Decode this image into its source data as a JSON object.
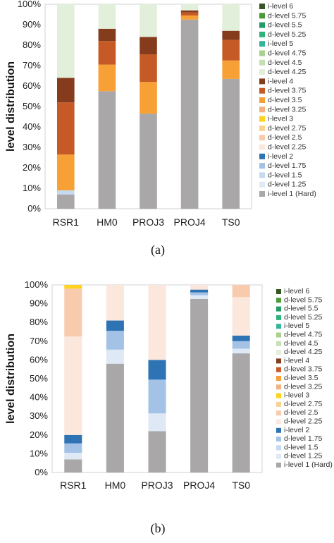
{
  "chart_data": [
    {
      "type": "bar",
      "stacked": true,
      "caption": "(a)",
      "ylabel": "level distribution",
      "ylim": [
        0,
        100
      ],
      "yticks": [
        "0%",
        "10%",
        "20%",
        "30%",
        "40%",
        "50%",
        "60%",
        "70%",
        "80%",
        "90%",
        "100%"
      ],
      "grid": false,
      "legend_position": "right",
      "categories": [
        "RSR1",
        "HM0",
        "PROJ3",
        "PROJ4",
        "TS0"
      ],
      "series": [
        {
          "name": "i-level 1 (Hard)",
          "color": "#a9a7a7",
          "values": [
            7,
            57.5,
            46.5,
            92.5,
            63.5
          ]
        },
        {
          "name": "d-level 1.25",
          "color": "#dfe9f6",
          "values": [
            0,
            0,
            0,
            0,
            0
          ]
        },
        {
          "name": "d-level 1.5",
          "color": "#c6dbf0",
          "values": [
            2,
            0,
            0,
            0,
            0
          ]
        },
        {
          "name": "d-level 1.75",
          "color": "#a3c2e6",
          "values": [
            0,
            0,
            0,
            0,
            0
          ]
        },
        {
          "name": "i-level 2",
          "color": "#2e74b5",
          "values": [
            0,
            0,
            0,
            0,
            0
          ]
        },
        {
          "name": "d-level 2.25",
          "color": "#fbe7dc",
          "values": [
            0,
            0,
            0,
            0,
            0
          ]
        },
        {
          "name": "d-level 2.5",
          "color": "#f8cbad",
          "values": [
            0,
            0,
            0,
            0,
            0
          ]
        },
        {
          "name": "d-level 2.75",
          "color": "#f9d38c",
          "values": [
            0,
            0,
            0,
            0,
            0
          ]
        },
        {
          "name": "i-level 3",
          "color": "#ffd21f",
          "values": [
            0,
            0,
            0,
            0,
            0
          ]
        },
        {
          "name": "d-level 3.25",
          "color": "#f4b183",
          "values": [
            0,
            0,
            0,
            0,
            0
          ]
        },
        {
          "name": "d-level 3.5",
          "color": "#f7a035",
          "values": [
            17.5,
            13,
            15.5,
            2,
            9
          ]
        },
        {
          "name": "d-level 3.75",
          "color": "#c55a27",
          "values": [
            25.5,
            11.5,
            13.5,
            1.5,
            10
          ]
        },
        {
          "name": "i-level 4",
          "color": "#843c1c",
          "values": [
            12,
            6,
            8.5,
            1,
            4.5
          ]
        },
        {
          "name": "d-level 4.25",
          "color": "#e2efda",
          "values": [
            36,
            12,
            16,
            3,
            13
          ]
        },
        {
          "name": "d-level 4.5",
          "color": "#c5e0b4",
          "values": [
            0,
            0,
            0,
            0,
            0
          ]
        },
        {
          "name": "d-level 4.75",
          "color": "#a9d08e",
          "values": [
            0,
            0,
            0,
            0,
            0
          ]
        },
        {
          "name": "i-level 5",
          "color": "#33b59a",
          "values": [
            0,
            0,
            0,
            0,
            0
          ]
        },
        {
          "name": "d-level 5.25",
          "color": "#2fb37a",
          "values": [
            0,
            0,
            0,
            0,
            0
          ]
        },
        {
          "name": "d-level 5.5",
          "color": "#1f9e63",
          "values": [
            0,
            0,
            0,
            0,
            0
          ]
        },
        {
          "name": "d-level 5.75",
          "color": "#4a9b36",
          "values": [
            0,
            0,
            0,
            0,
            0
          ]
        },
        {
          "name": "i-level 6",
          "color": "#375623",
          "values": [
            0,
            0,
            0,
            0,
            0
          ]
        }
      ]
    },
    {
      "type": "bar",
      "stacked": true,
      "caption": "(b)",
      "ylabel": "level distribution",
      "ylim": [
        0,
        100
      ],
      "yticks": [
        "0%",
        "10%",
        "20%",
        "30%",
        "40%",
        "50%",
        "60%",
        "70%",
        "80%",
        "90%",
        "100%"
      ],
      "grid": false,
      "legend_position": "right",
      "categories": [
        "RSR1",
        "HM0",
        "PROJ3",
        "PROJ4",
        "TS0"
      ],
      "series": [
        {
          "name": "i-level 1 (Hard)",
          "color": "#a9a7a7",
          "values": [
            7,
            58,
            22,
            92.5,
            63.5
          ]
        },
        {
          "name": "d-level 1.25",
          "color": "#dfe9f6",
          "values": [
            3.5,
            7.5,
            9.5,
            2,
            2.5
          ]
        },
        {
          "name": "d-level 1.5",
          "color": "#c6dbf0",
          "values": [
            0,
            0,
            0,
            0,
            0
          ]
        },
        {
          "name": "d-level 1.75",
          "color": "#a3c2e6",
          "values": [
            5,
            10,
            18,
            1.5,
            4
          ]
        },
        {
          "name": "i-level 2",
          "color": "#2e74b5",
          "values": [
            4.5,
            5.5,
            10.5,
            1.5,
            3
          ]
        },
        {
          "name": "d-level 2.25",
          "color": "#fbe7dc",
          "values": [
            52.5,
            19,
            40,
            2.5,
            20.5
          ]
        },
        {
          "name": "d-level 2.5",
          "color": "#f8cbad",
          "values": [
            25.5,
            0,
            0,
            0,
            6.5
          ]
        },
        {
          "name": "d-level 2.75",
          "color": "#f9d38c",
          "values": [
            0,
            0,
            0,
            0,
            0
          ]
        },
        {
          "name": "i-level 3",
          "color": "#ffd21f",
          "values": [
            2,
            0,
            0,
            0,
            0
          ]
        },
        {
          "name": "d-level 3.25",
          "color": "#f4b183",
          "values": [
            0,
            0,
            0,
            0,
            0
          ]
        },
        {
          "name": "d-level 3.5",
          "color": "#f7a035",
          "values": [
            0,
            0,
            0,
            0,
            0
          ]
        },
        {
          "name": "d-level 3.75",
          "color": "#c55a27",
          "values": [
            0,
            0,
            0,
            0,
            0
          ]
        },
        {
          "name": "i-level 4",
          "color": "#843c1c",
          "values": [
            0,
            0,
            0,
            0,
            0
          ]
        },
        {
          "name": "d-level 4.25",
          "color": "#e2efda",
          "values": [
            0,
            0,
            0,
            0,
            0
          ]
        },
        {
          "name": "d-level 4.5",
          "color": "#c5e0b4",
          "values": [
            0,
            0,
            0,
            0,
            0
          ]
        },
        {
          "name": "d-level 4.75",
          "color": "#a9d08e",
          "values": [
            0,
            0,
            0,
            0,
            0
          ]
        },
        {
          "name": "i-level 5",
          "color": "#33b59a",
          "values": [
            0,
            0,
            0,
            0,
            0
          ]
        },
        {
          "name": "d-level 5.25",
          "color": "#2fb37a",
          "values": [
            0,
            0,
            0,
            0,
            0
          ]
        },
        {
          "name": "d-level 5.5",
          "color": "#1f9e63",
          "values": [
            0,
            0,
            0,
            0,
            0
          ]
        },
        {
          "name": "d-level 5.75",
          "color": "#4a9b36",
          "values": [
            0,
            0,
            0,
            0,
            0
          ]
        },
        {
          "name": "i-level 6",
          "color": "#375623",
          "values": [
            0,
            0,
            0,
            0,
            0
          ]
        }
      ]
    }
  ]
}
